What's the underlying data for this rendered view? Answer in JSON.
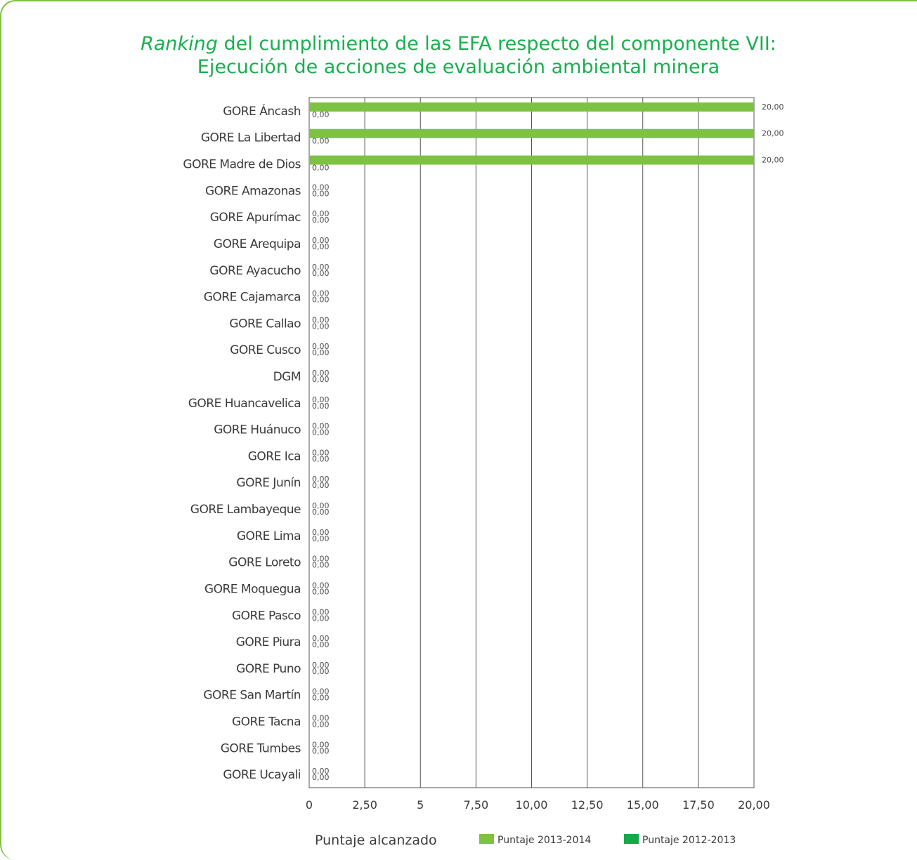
{
  "chart_data": {
    "type": "bar",
    "orientation": "horizontal",
    "title_italic": "Ranking",
    "title_rest": " del cumplimiento de las EFA respecto del componente VII:",
    "title_line2": "Ejecución de acciones de evaluación ambiental minera",
    "xlabel": "Puntaje alcanzado",
    "xlim": [
      0,
      20
    ],
    "x_ticks": [
      "0",
      "2,50",
      "5",
      "7,50",
      "10,00",
      "12,50",
      "15,00",
      "17,50",
      "20,00"
    ],
    "grid": true,
    "legend_position": "bottom",
    "categories": [
      "GORE Áncash",
      "GORE La Libertad",
      "GORE Madre de Dios",
      "GORE Amazonas",
      "GORE Apurímac",
      "GORE Arequipa",
      "GORE Ayacucho",
      "GORE Cajamarca",
      "GORE Callao",
      "GORE Cusco",
      "DGM",
      "GORE Huancavelica",
      "GORE Huánuco",
      "GORE Ica",
      "GORE Junín",
      "GORE Lambayeque",
      "GORE Lima",
      "GORE Loreto",
      "GORE Moquegua",
      "GORE Pasco",
      "GORE Piura",
      "GORE Puno",
      "GORE San Martín",
      "GORE Tacna",
      "GORE Tumbes",
      "GORE Ucayali"
    ],
    "series": [
      {
        "name": "Puntaje 2013-2014",
        "color": "#7dc242",
        "values": [
          20,
          20,
          20,
          0,
          0,
          0,
          0,
          0,
          0,
          0,
          0,
          0,
          0,
          0,
          0,
          0,
          0,
          0,
          0,
          0,
          0,
          0,
          0,
          0,
          0,
          0
        ],
        "labels": [
          "20,00",
          "20,00",
          "20,00",
          "0,00",
          "0,00",
          "0,00",
          "0,00",
          "0,00",
          "0,00",
          "0,00",
          "0,00",
          "0,00",
          "0,00",
          "0,00",
          "0,00",
          "0,00",
          "0,00",
          "0,00",
          "0,00",
          "0,00",
          "0,00",
          "0,00",
          "0,00",
          "0,00",
          "0,00",
          "0,00"
        ]
      },
      {
        "name": "Puntaje 2012-2013",
        "color": "#17a84b",
        "values": [
          0,
          0,
          0,
          0,
          0,
          0,
          0,
          0,
          0,
          0,
          0,
          0,
          0,
          0,
          0,
          0,
          0,
          0,
          0,
          0,
          0,
          0,
          0,
          0,
          0,
          0
        ],
        "labels": [
          "0,00",
          "0,00",
          "0,00",
          "0,00",
          "0,00",
          "0,00",
          "0,00",
          "0,00",
          "0,00",
          "0,00",
          "0,00",
          "0,00",
          "0,00",
          "0,00",
          "0,00",
          "0,00",
          "0,00",
          "0,00",
          "0,00",
          "0,00",
          "0,00",
          "0,00",
          "0,00",
          "0,00",
          "0,00",
          "0,00"
        ]
      }
    ]
  }
}
